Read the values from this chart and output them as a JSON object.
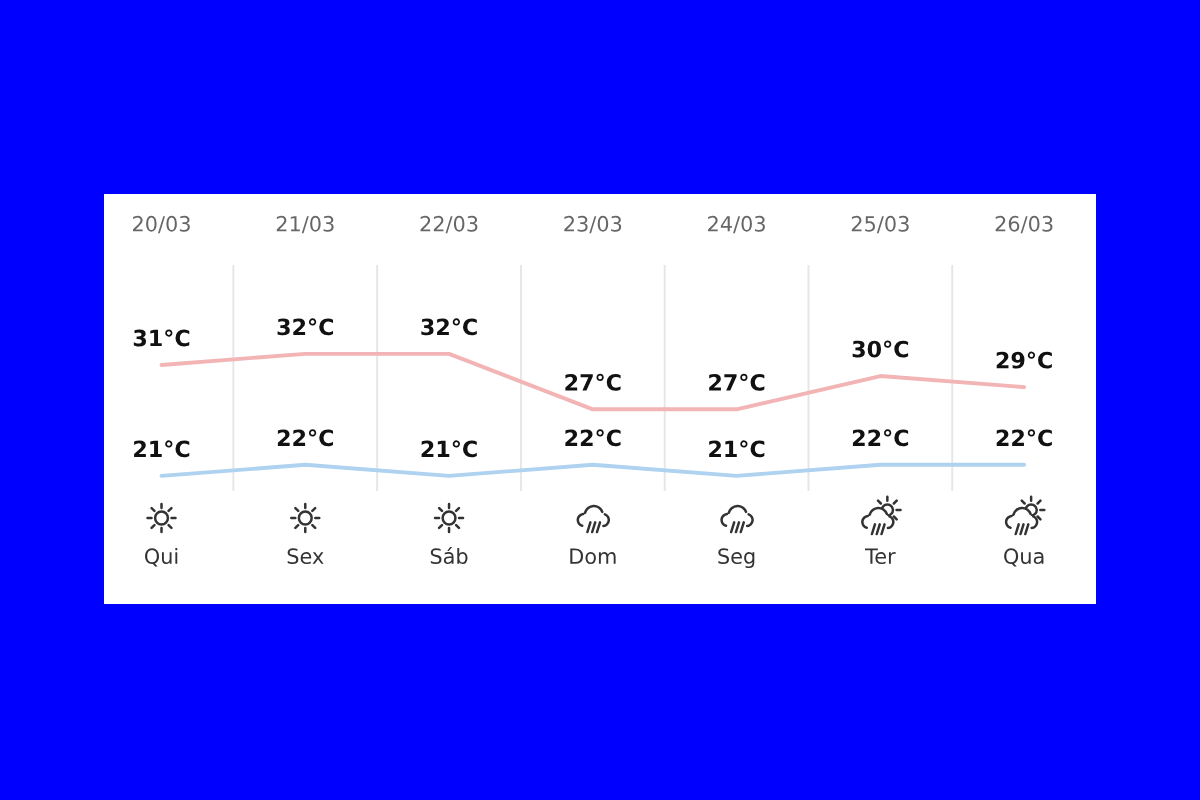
{
  "chart_data": {
    "type": "line",
    "categories": [
      "20/03",
      "21/03",
      "22/03",
      "23/03",
      "24/03",
      "25/03",
      "26/03"
    ],
    "series": [
      {
        "color": "#f2b4b4",
        "values": [
          31,
          32,
          32,
          27,
          27,
          30,
          29
        ],
        "value_labels": [
          "31°C",
          "32°C",
          "32°C",
          "27°C",
          "27°C",
          "30°C",
          "29°C"
        ]
      },
      {
        "color": "#aed2f0",
        "values": [
          21,
          22,
          21,
          22,
          21,
          22,
          22
        ],
        "value_labels": [
          "21°C",
          "22°C",
          "21°C",
          "22°C",
          "21°C",
          "22°C",
          "22°C"
        ]
      }
    ],
    "grid": "x",
    "tick_labels": "x",
    "annotations": [
      "Qui",
      "Sex",
      "Sáb",
      "Dom",
      "Seg",
      "Ter",
      "Qua"
    ]
  }
}
